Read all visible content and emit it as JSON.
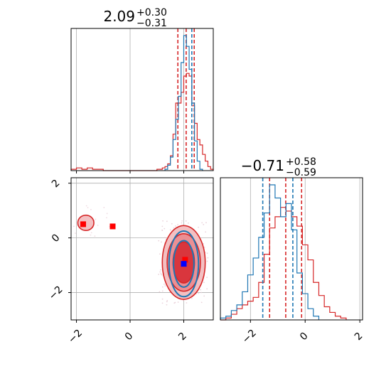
{
  "chart_data": {
    "type": "corner",
    "panels": [
      {
        "id": "hist_param1",
        "type": "histogram",
        "title": {
          "value": "2.09",
          "upper": "+0.30",
          "lower": "−0.31"
        },
        "xlim": [
          -2.2,
          3.1
        ],
        "x_ticks": [
          -2,
          0,
          2
        ],
        "grid": true,
        "series": [
          {
            "color": "#d62728",
            "step_x": [
              -2.2,
              -2.0,
              -1.8,
              -1.6,
              -1.4,
              -1.2,
              -1.0,
              -0.8,
              -0.6,
              -0.4,
              -0.2,
              0.0,
              0.2,
              0.4,
              0.6,
              0.8,
              1.0,
              1.1,
              1.2,
              1.3,
              1.4,
              1.5,
              1.6,
              1.7,
              1.8,
              1.9,
              2.0,
              2.1,
              2.2,
              2.3,
              2.4,
              2.5,
              2.6,
              2.7,
              2.8,
              2.9,
              3.0,
              3.1
            ],
            "step_y": [
              0.01,
              0.02,
              0.01,
              0.02,
              0.01,
              0.01,
              0.0,
              0.0,
              0.0,
              0.0,
              0.0,
              0.0,
              0.0,
              0.0,
              0.0,
              0.0,
              0.01,
              0.01,
              0.02,
              0.03,
              0.05,
              0.11,
              0.27,
              0.5,
              0.5,
              0.58,
              0.7,
              0.72,
              0.7,
              0.48,
              0.35,
              0.23,
              0.19,
              0.12,
              0.07,
              0.03,
              0.01
            ],
            "quantiles": [
              1.78,
              2.09,
              2.39
            ]
          },
          {
            "color": "#1f77b4",
            "step_x": [
              1.3,
              1.4,
              1.5,
              1.6,
              1.7,
              1.8,
              1.9,
              2.0,
              2.1,
              2.2,
              2.3,
              2.4,
              2.5,
              2.6,
              2.7
            ],
            "step_y": [
              0.01,
              0.04,
              0.1,
              0.23,
              0.38,
              0.55,
              0.8,
              1.0,
              0.92,
              0.75,
              0.5,
              0.22,
              0.07,
              0.01
            ],
            "quantiles": [
              2.3
            ]
          }
        ]
      },
      {
        "id": "hist_param2",
        "type": "histogram",
        "title": {
          "value": "−0.71",
          "upper": "+0.58",
          "lower": "−0.59"
        },
        "xlim": [
          -3.1,
          2.1
        ],
        "x_ticks": [
          -2,
          0,
          2
        ],
        "x_tick_labels": [
          "−2",
          "0",
          "2"
        ],
        "grid": true,
        "series": [
          {
            "color": "#d62728",
            "step_x": [
              -3.1,
              -2.9,
              -2.7,
              -2.5,
              -2.3,
              -2.1,
              -1.9,
              -1.7,
              -1.5,
              -1.3,
              -1.1,
              -0.9,
              -0.7,
              -0.5,
              -0.3,
              -0.1,
              0.1,
              0.3,
              0.5,
              0.7,
              0.9,
              1.1,
              1.3,
              1.5
            ],
            "step_y": [
              0.0,
              0.01,
              0.03,
              0.06,
              0.08,
              0.1,
              0.12,
              0.2,
              0.35,
              0.49,
              0.55,
              0.6,
              0.58,
              0.55,
              0.5,
              0.4,
              0.32,
              0.2,
              0.13,
              0.07,
              0.04,
              0.02,
              0.01
            ],
            "quantiles": [
              -1.3,
              -0.71,
              -0.13
            ]
          },
          {
            "color": "#1f77b4",
            "step_x": [
              -3.1,
              -2.9,
              -2.7,
              -2.5,
              -2.3,
              -2.1,
              -1.9,
              -1.7,
              -1.5,
              -1.3,
              -1.1,
              -0.9,
              -0.7,
              -0.5,
              -0.3,
              -0.1,
              0.1,
              0.3,
              0.5
            ],
            "step_y": [
              0.01,
              0.02,
              0.05,
              0.08,
              0.15,
              0.24,
              0.33,
              0.44,
              0.57,
              0.72,
              0.65,
              0.55,
              0.62,
              0.48,
              0.25,
              0.14,
              0.06,
              0.02
            ],
            "quantiles": [
              -1.55,
              -0.45
            ]
          }
        ]
      },
      {
        "id": "scatter_2d",
        "type": "contour",
        "xlim": [
          -2.2,
          3.1
        ],
        "ylim": [
          -3.0,
          2.2
        ],
        "x_ticks": [
          -2,
          0,
          2
        ],
        "x_tick_labels": [
          "−2",
          "0",
          "2"
        ],
        "y_ticks": [
          -2,
          0,
          2
        ],
        "y_tick_labels": [
          "−2",
          "0",
          "2"
        ],
        "grid": true,
        "markers": [
          {
            "x": -1.75,
            "y": 0.5,
            "color": "#ff0000"
          },
          {
            "x": -0.65,
            "y": 0.42,
            "color": "#ff0000"
          },
          {
            "x": 2.05,
            "y": -0.8,
            "color": "#ff0000"
          },
          {
            "x": 2.0,
            "y": -0.95,
            "color": "#0000ff"
          }
        ],
        "red_contours": [
          {
            "cx": 2.0,
            "cy": -0.9,
            "rx": 0.8,
            "ry": 1.35
          },
          {
            "cx": 2.0,
            "cy": -0.9,
            "rx": 0.62,
            "ry": 1.05
          },
          {
            "cx": 2.0,
            "cy": -0.9,
            "rx": 0.4,
            "ry": 0.75
          },
          {
            "cx": -1.65,
            "cy": 0.55,
            "rx": 0.3,
            "ry": 0.28
          }
        ],
        "blue_contours": [
          {
            "cx": 2.0,
            "cy": -0.95,
            "rx": 0.55,
            "ry": 1.2
          },
          {
            "cx": 2.0,
            "cy": -0.95,
            "rx": 0.38,
            "ry": 0.85
          }
        ]
      }
    ]
  }
}
